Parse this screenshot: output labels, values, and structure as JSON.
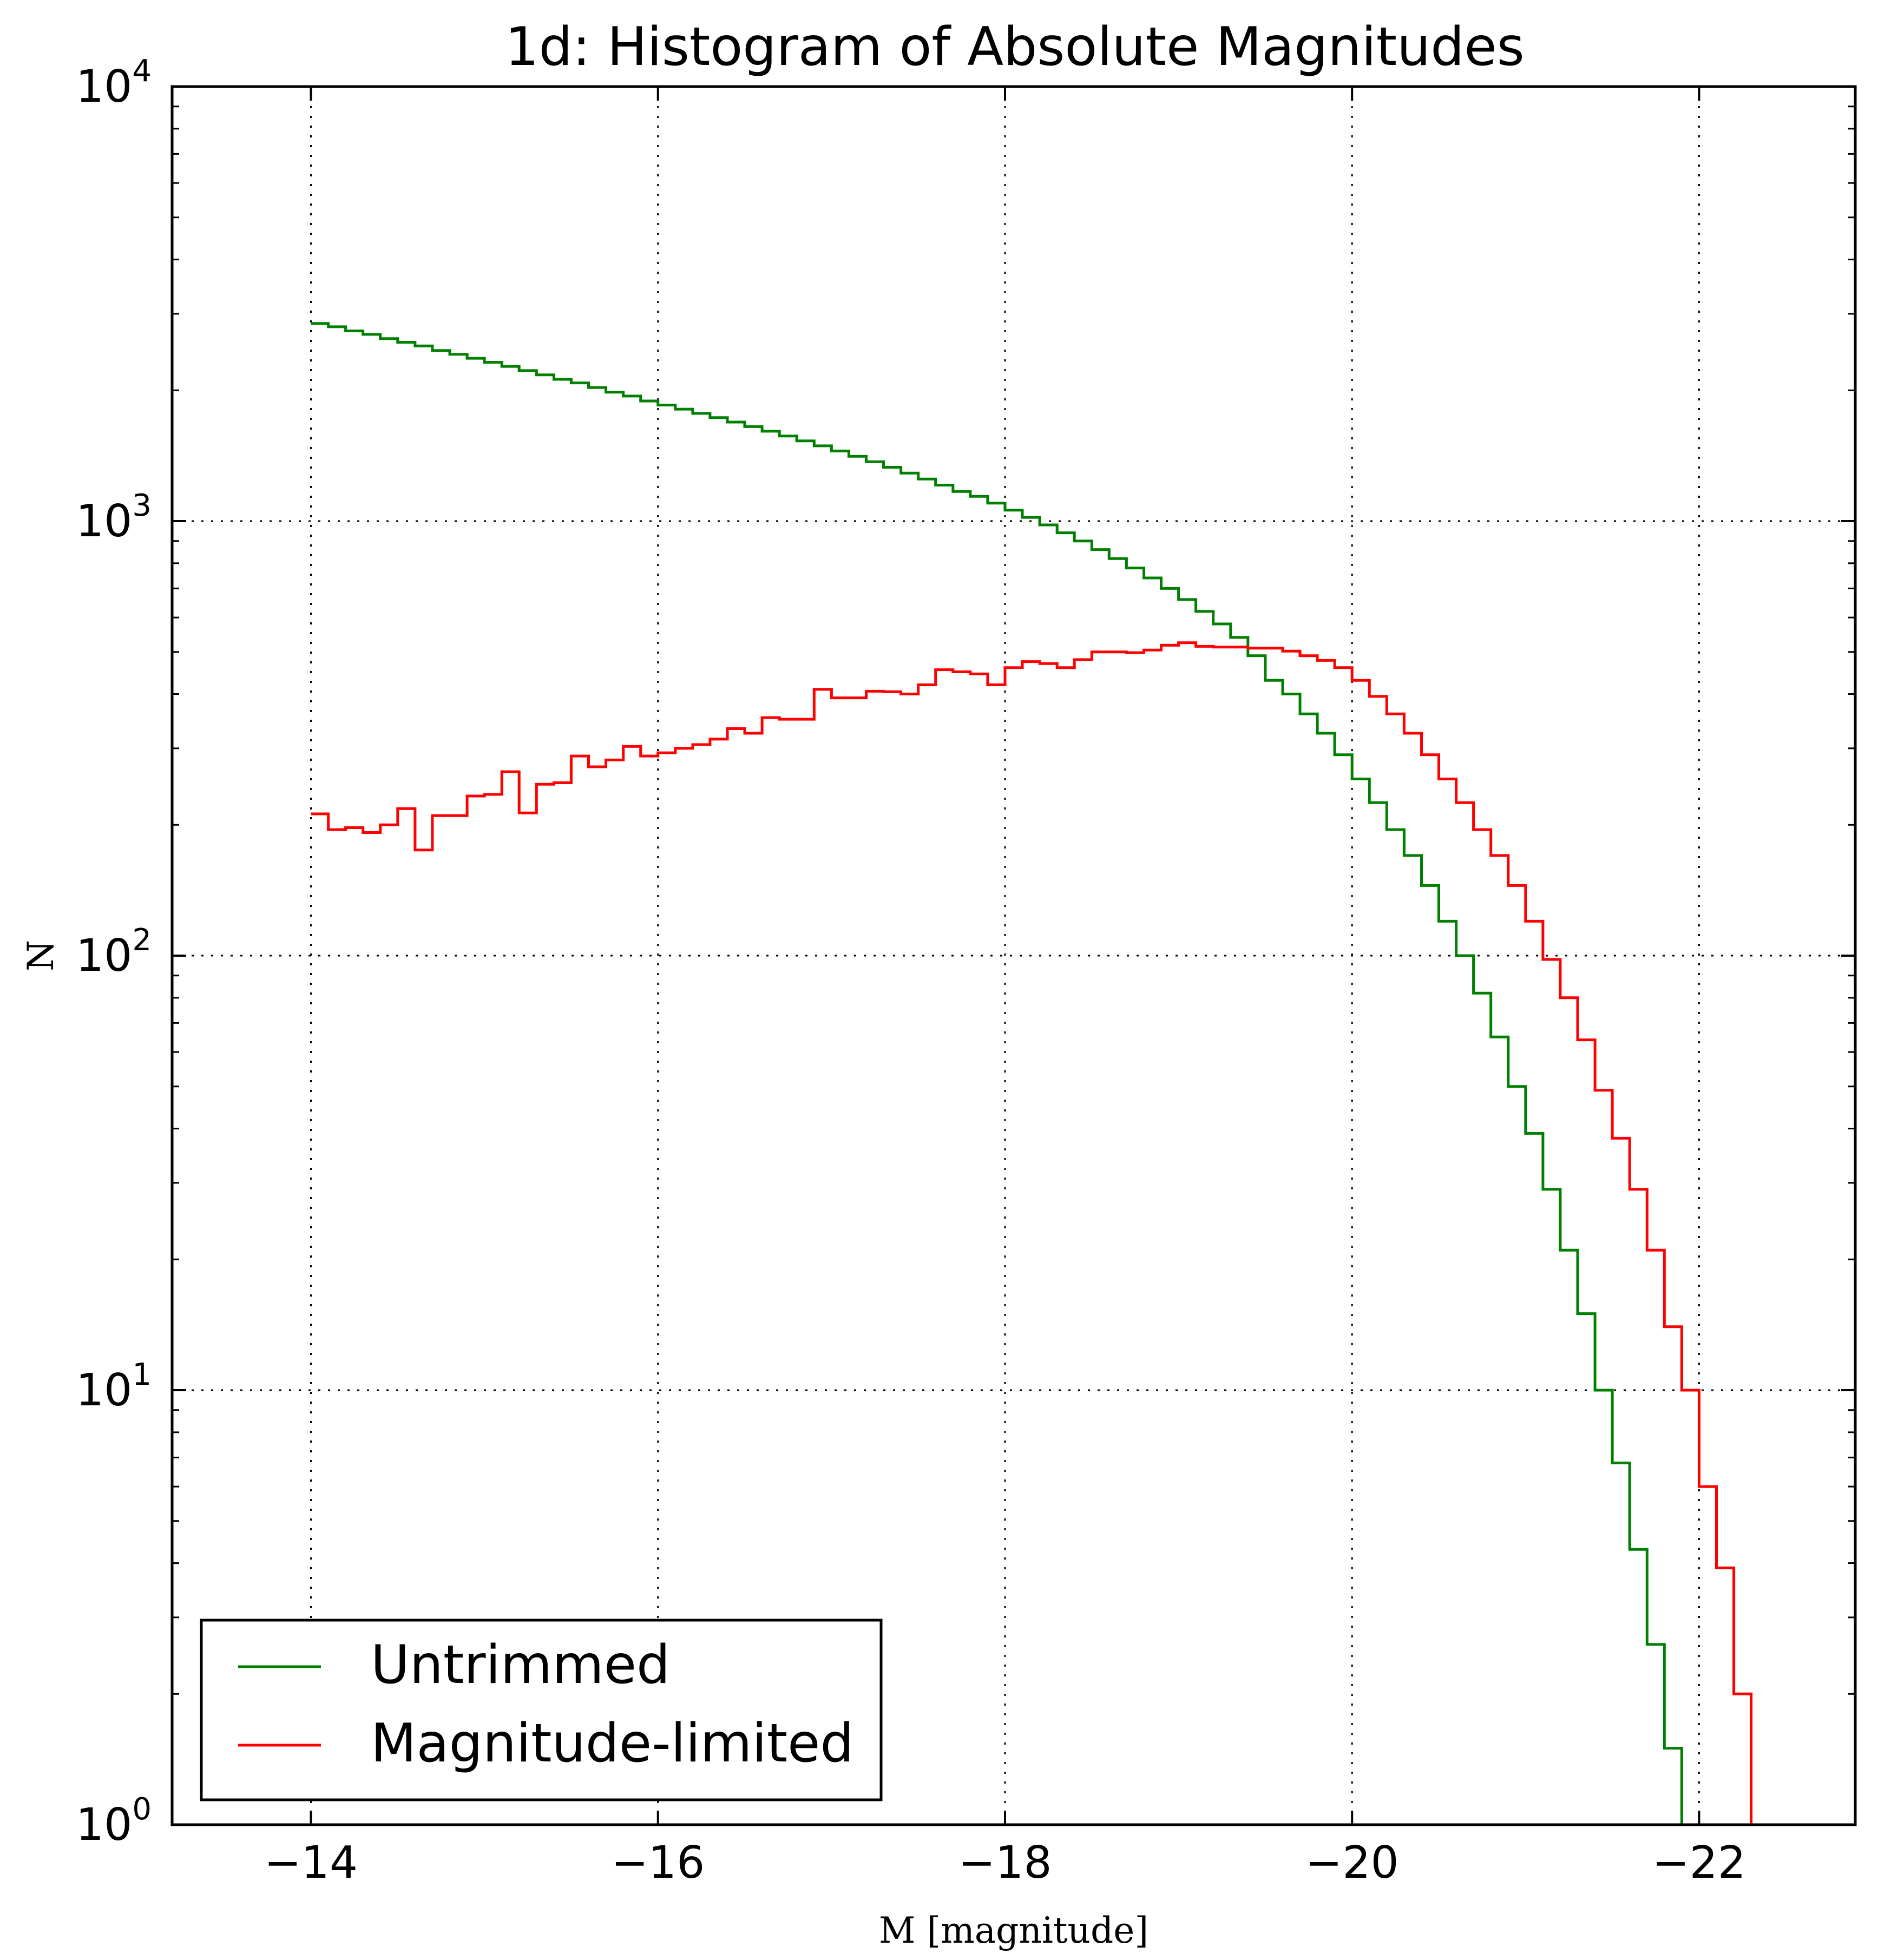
{
  "chart_data": {
    "type": "histogram-step",
    "title": "1d: Histogram of Absolute Magnitudes",
    "xlabel": "M [magnitude]",
    "ylabel": "N",
    "xlim": [
      -13.2,
      -22.9
    ],
    "ylim": [
      1,
      10000
    ],
    "yscale": "log",
    "grid": true,
    "legend_position": "lower-left",
    "x_ticks": [
      {
        "value": -14,
        "label": "−14"
      },
      {
        "value": -16,
        "label": "−16"
      },
      {
        "value": -18,
        "label": "−18"
      },
      {
        "value": -20,
        "label": "−20"
      },
      {
        "value": -22,
        "label": "−22"
      }
    ],
    "y_ticks": [
      {
        "value": 1,
        "base": "10",
        "exp": "0"
      },
      {
        "value": 10,
        "base": "10",
        "exp": "1"
      },
      {
        "value": 100,
        "base": "10",
        "exp": "2"
      },
      {
        "value": 1000,
        "base": "10",
        "exp": "3"
      },
      {
        "value": 10000,
        "base": "10",
        "exp": "4"
      }
    ],
    "bin_start": -14.0,
    "bin_width": -0.1,
    "series": [
      {
        "name": "Untrimmed",
        "color": "#008000",
        "values": [
          2850,
          2800,
          2740,
          2690,
          2630,
          2580,
          2530,
          2470,
          2420,
          2370,
          2320,
          2270,
          2220,
          2170,
          2120,
          2080,
          2030,
          1980,
          1940,
          1890,
          1850,
          1810,
          1770,
          1730,
          1690,
          1650,
          1610,
          1570,
          1530,
          1490,
          1450,
          1410,
          1370,
          1330,
          1290,
          1250,
          1210,
          1170,
          1140,
          1100,
          1060,
          1020,
          980,
          940,
          900,
          860,
          820,
          780,
          740,
          700,
          660,
          620,
          580,
          540,
          490,
          430,
          400,
          360,
          325,
          290,
          255,
          225,
          195,
          170,
          145,
          120,
          100,
          82,
          65,
          50,
          39,
          29,
          21,
          15,
          10,
          6.8,
          4.3,
          2.6,
          1.5
        ]
      },
      {
        "name": "Magnitude-limited",
        "color": "#ff0000",
        "values": [
          212,
          195,
          197,
          192,
          200,
          218,
          175,
          210,
          210,
          233,
          235,
          265,
          213,
          248,
          250,
          288,
          272,
          282,
          303,
          288,
          293,
          300,
          306,
          315,
          333,
          325,
          353,
          350,
          350,
          410,
          392,
          392,
          406,
          405,
          400,
          420,
          455,
          450,
          445,
          420,
          460,
          475,
          470,
          460,
          480,
          500,
          500,
          498,
          505,
          518,
          525,
          515,
          513,
          513,
          510,
          510,
          502,
          490,
          478,
          460,
          430,
          395,
          360,
          325,
          290,
          255,
          225,
          195,
          170,
          145,
          120,
          98,
          80,
          64,
          49,
          38,
          29,
          21,
          14,
          10,
          6.0,
          3.9,
          2.0
        ]
      }
    ]
  }
}
